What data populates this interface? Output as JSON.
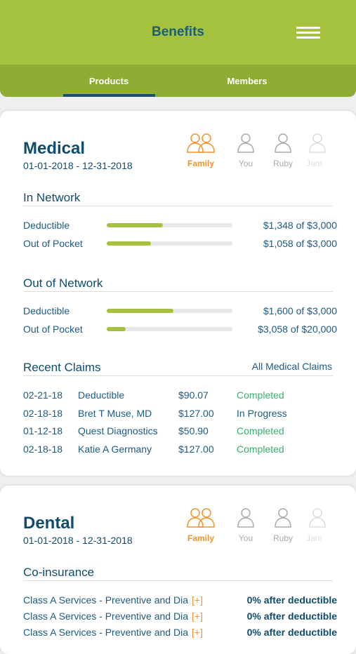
{
  "header": {
    "title": "Benefits"
  },
  "tabs": [
    "Products",
    "Members"
  ],
  "bar_color": "#a5c23f",
  "medical": {
    "title": "Medical",
    "date_range": "01-01-2018 - 12-31-2018",
    "members": [
      "Family",
      "You",
      "Ruby",
      "Jam"
    ],
    "sections": [
      {
        "title": "In Network",
        "rows": [
          {
            "name": "Deductible",
            "used": 1348,
            "limit": 3000,
            "label": "$1,348 of $3,000"
          },
          {
            "name": "Out of Pocket",
            "used": 1058,
            "limit": 3000,
            "label": "$1,058 of $3,000"
          }
        ]
      },
      {
        "title": "Out of Network",
        "rows": [
          {
            "name": "Deductible",
            "used": 1600,
            "limit": 3000,
            "label": "$1,600 of $3,000"
          },
          {
            "name": "Out of Pocket",
            "used": 3058,
            "limit": 20000,
            "label": "$3,058 of $20,000"
          }
        ]
      }
    ],
    "claims": {
      "title": "Recent Claims",
      "link": "All Medical Claims",
      "rows": [
        {
          "date": "02-21-18",
          "provider": "Deductible",
          "amount": "$90.07",
          "status": "Completed",
          "color": "#3aae6e"
        },
        {
          "date": "02-18-18",
          "provider": "Bret T Muse, MD",
          "amount": "$127.00",
          "status": "In Progress",
          "color": "#1d5b83"
        },
        {
          "date": "01-12-18",
          "provider": "Quest Diagnostics",
          "amount": "$50.90",
          "status": "Completed",
          "color": "#3aae6e"
        },
        {
          "date": "02-18-18",
          "provider": "Katie A Germany",
          "amount": "$127.00",
          "status": "Completed",
          "color": "#3aae6e"
        }
      ]
    }
  },
  "dental": {
    "title": "Dental",
    "date_range": "01-01-2018 - 12-31-2018",
    "members": [
      "Family",
      "You",
      "Ruby",
      "Jam"
    ],
    "coinsurance": {
      "title": "Co-insurance",
      "rows": [
        {
          "service": "Class A Services - Preventive and Dia",
          "more": "[+]",
          "value": "0% after deductible"
        },
        {
          "service": "Class A Services - Preventive and Dia",
          "more": "[+]",
          "value": "0% after deductible"
        },
        {
          "service": "Class A Services - Preventive and Dia",
          "more": "[+]",
          "value": "0% after deductible"
        }
      ]
    }
  }
}
